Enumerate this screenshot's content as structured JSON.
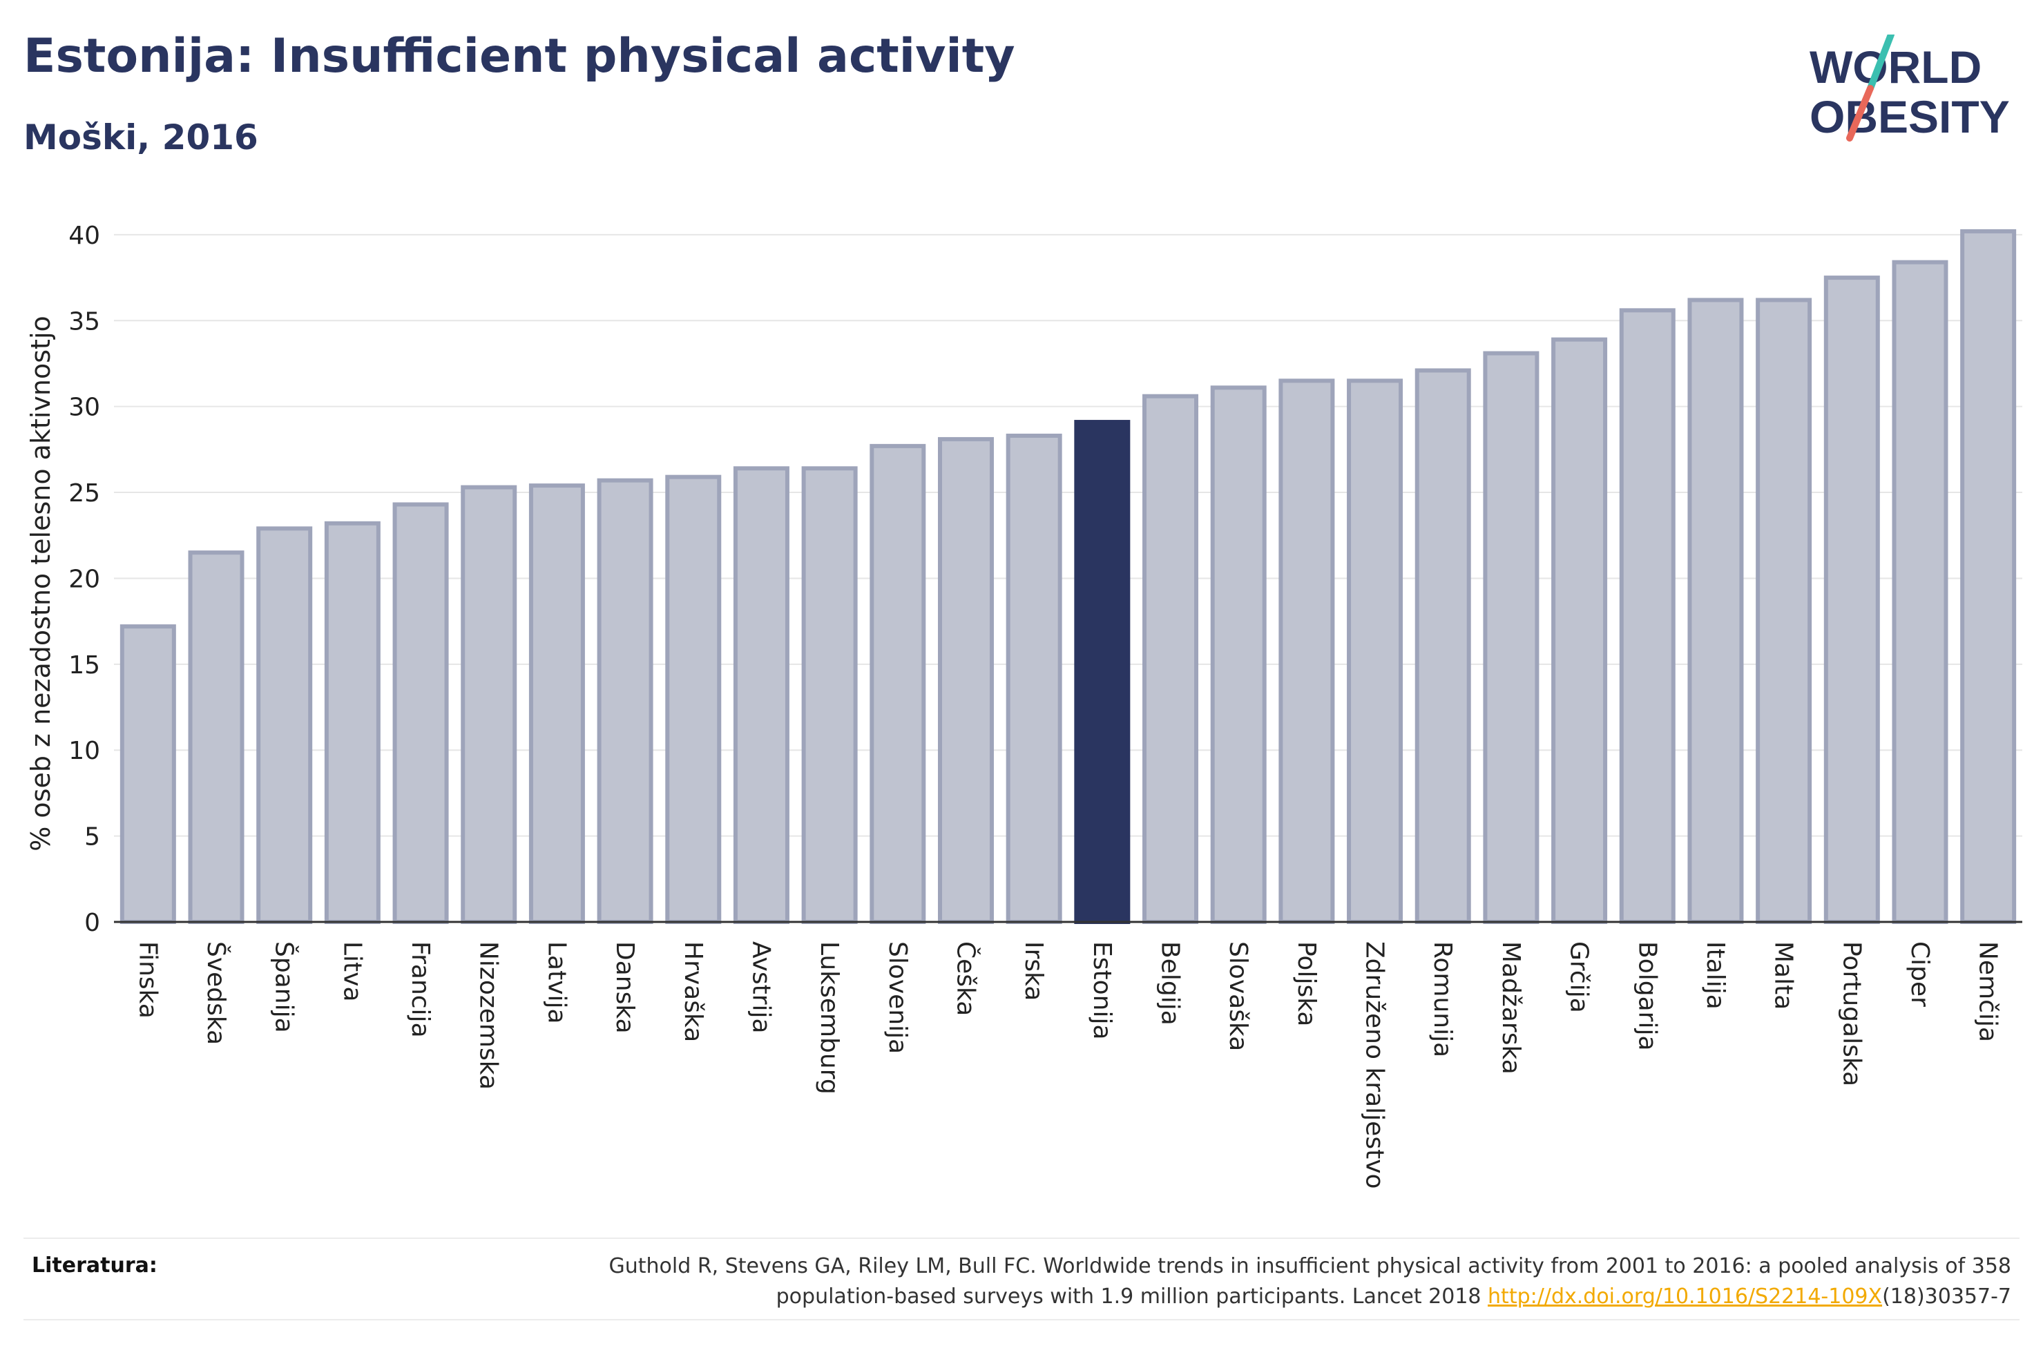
{
  "header": {
    "title": "Estonija: Insufficient physical activity",
    "subtitle": "Moški, 2016"
  },
  "logo": {
    "line1": "WORLD",
    "line2": "OBESITY"
  },
  "colors": {
    "bar_default": "#bfc3d0",
    "bar_default_stroke": "#9ea4ba",
    "bar_highlight": "#2a3560",
    "title": "#2a3560",
    "link": "#f2a900",
    "logo_slash_top": "#3bbfb0",
    "logo_slash_bottom": "#e8685a"
  },
  "chart_data": {
    "type": "bar",
    "title": "Estonija: Insufficient physical activity",
    "subtitle": "Moški, 2016",
    "xlabel": "",
    "ylabel": "% oseb z nezadostno telesno aktivnostjo",
    "ylim": [
      0,
      41
    ],
    "yticks": [
      0,
      5,
      10,
      15,
      20,
      25,
      30,
      35,
      40
    ],
    "grid": true,
    "highlight": "Estonija",
    "categories": [
      "Finska",
      "Švedska",
      "Španija",
      "Litva",
      "Francija",
      "Nizozemska",
      "Latvija",
      "Danska",
      "Hrvaška",
      "Avstrija",
      "Luksemburg",
      "Slovenija",
      "Češka",
      "Irska",
      "Estonija",
      "Belgija",
      "Slovaška",
      "Poljska",
      "Združeno kraljestvo",
      "Romunija",
      "Madžarska",
      "Grčija",
      "Bolgarija",
      "Italija",
      "Malta",
      "Portugalska",
      "Ciper",
      "Nemčija"
    ],
    "values": [
      17.2,
      21.5,
      22.9,
      23.2,
      24.3,
      25.3,
      25.4,
      25.7,
      25.9,
      26.4,
      26.4,
      27.7,
      28.1,
      28.3,
      29.1,
      30.6,
      31.1,
      31.5,
      31.5,
      32.1,
      33.1,
      33.9,
      35.6,
      36.2,
      36.2,
      37.5,
      38.4,
      40.2
    ]
  },
  "footer": {
    "label": "Literatura:",
    "ref_line1": "Guthold R, Stevens GA, Riley LM, Bull FC. Worldwide trends in insufficient physical activity from 2001 to 2016: a pooled analysis of 358",
    "ref_line2_pre": "population-based surveys with 1.9 million participants. Lancet 2018 ",
    "ref_link": "http://dx.doi.org/10.1016/S2214-109X",
    "ref_line2_post": "(18)30357-7"
  }
}
